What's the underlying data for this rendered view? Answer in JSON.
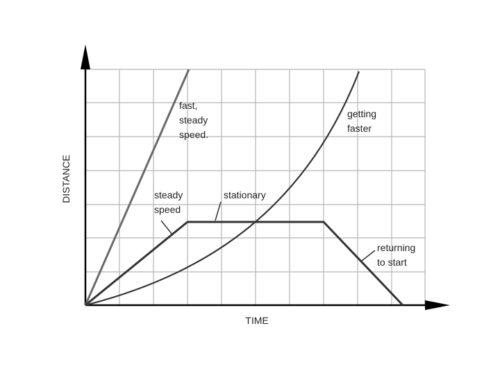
{
  "axes": {
    "x_label": "TIME",
    "y_label": "DISTANCE"
  },
  "annotations": [
    {
      "lines": [
        "fast,",
        "steady",
        "speed."
      ]
    },
    {
      "lines": [
        "getting",
        "faster"
      ]
    },
    {
      "lines": [
        "steady",
        "speed"
      ]
    },
    {
      "lines": [
        "stationary"
      ]
    },
    {
      "lines": [
        "returning",
        "to start"
      ]
    }
  ]
}
